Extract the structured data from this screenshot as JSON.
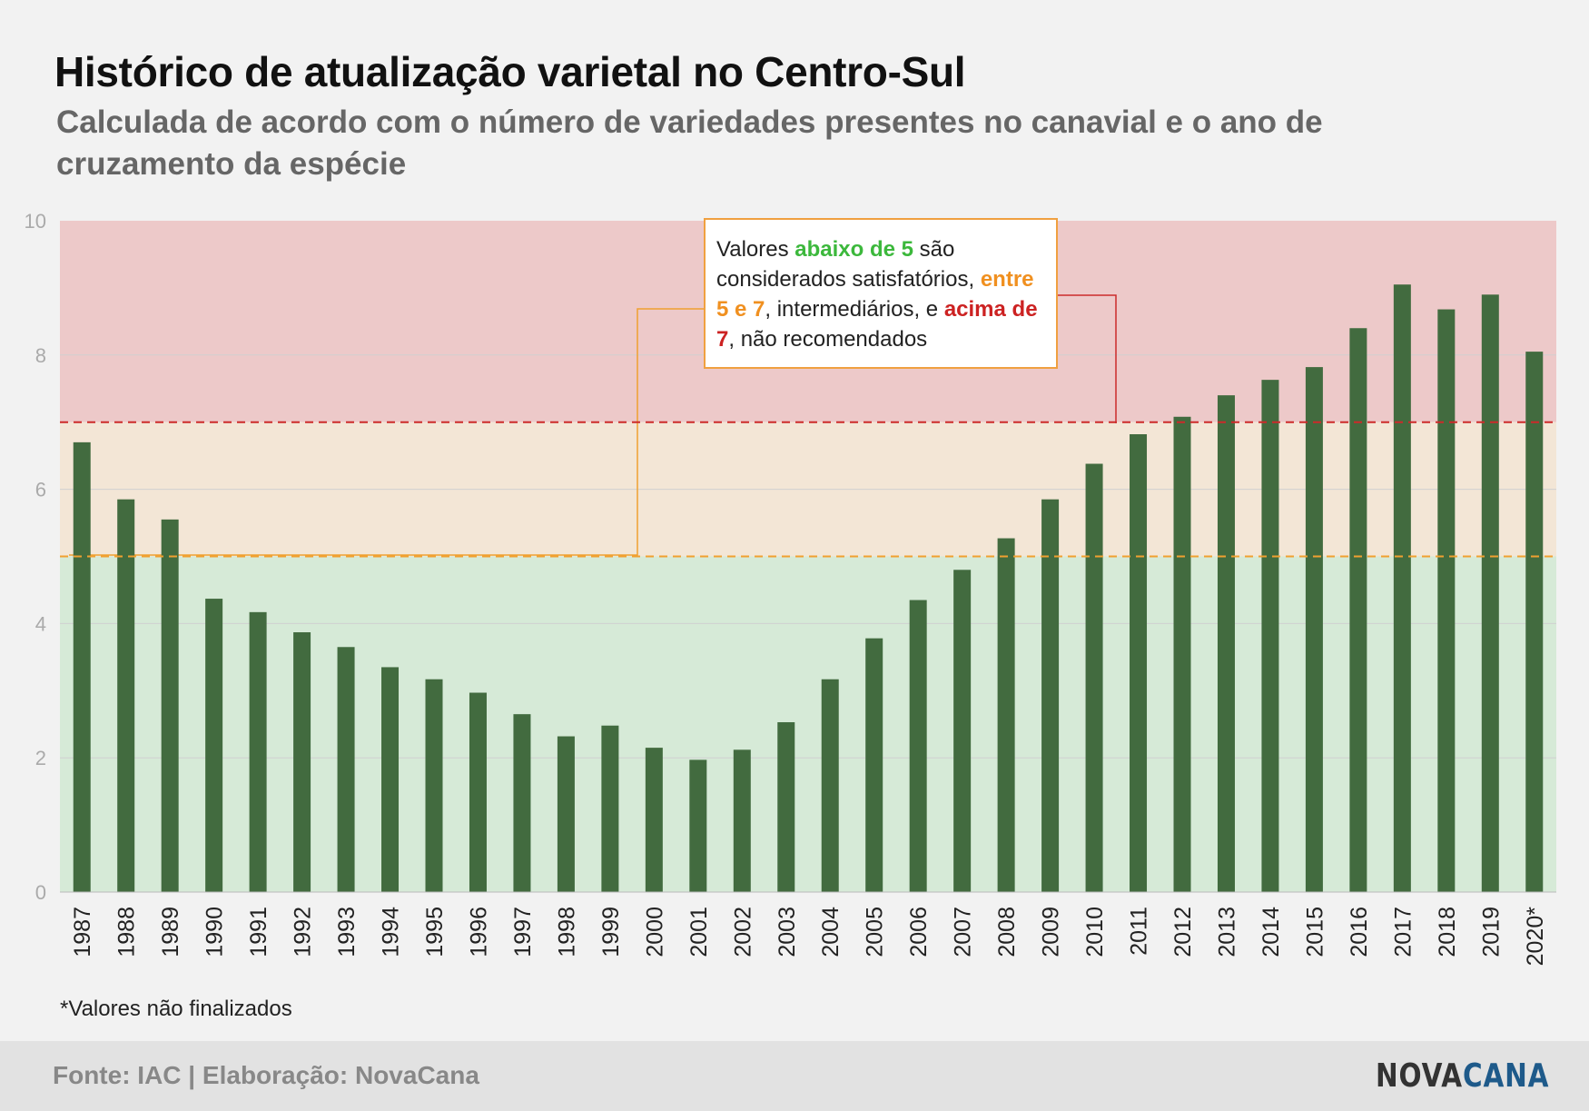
{
  "header": {
    "title": "Histórico de atualização varietal no Centro-Sul",
    "subtitle": "Calculada de acordo com o número de variedades presentes no canavial e o ano de cruzamento da espécie"
  },
  "callout": {
    "t1": "Valores ",
    "h1": "abaixo de 5",
    "t2": " são considerados satisfatórios, ",
    "h2": "entre 5 e 7",
    "t3": ", intermediários, e ",
    "h3": "acima de 7",
    "t4": ", não recomendados"
  },
  "footnote": "*Valores não finalizados",
  "footer": {
    "source": "Fonte: IAC | Elaboração: NovaCana",
    "logo_part1": "NOVA",
    "logo_part2": "CANA"
  },
  "colors": {
    "bar": "#426b3f",
    "zone_green": "#d6ead7",
    "zone_orange": "#f3e6d6",
    "zone_red": "#edc9c9",
    "line_orange": "#f0a030",
    "line_red": "#cc2a2a"
  },
  "chart_data": {
    "type": "bar",
    "categories": [
      "1987",
      "1988",
      "1989",
      "1990",
      "1991",
      "1992",
      "1993",
      "1994",
      "1995",
      "1996",
      "1997",
      "1998",
      "1999",
      "2000",
      "2001",
      "2002",
      "2003",
      "2004",
      "2005",
      "2006",
      "2007",
      "2008",
      "2009",
      "2010",
      "2011",
      "2012",
      "2013",
      "2014",
      "2015",
      "2016",
      "2017",
      "2018",
      "2019",
      "2020*"
    ],
    "values": [
      6.7,
      5.85,
      5.55,
      4.37,
      4.17,
      3.87,
      3.65,
      3.35,
      3.17,
      2.97,
      2.65,
      2.32,
      2.48,
      2.15,
      1.97,
      2.12,
      2.53,
      3.17,
      3.78,
      4.35,
      4.8,
      5.27,
      5.85,
      6.38,
      6.82,
      7.08,
      7.4,
      7.63,
      7.82,
      8.4,
      9.05,
      8.68,
      8.9,
      8.05
    ],
    "ylim": [
      0,
      10
    ],
    "yticks": [
      0,
      2,
      4,
      6,
      8,
      10
    ],
    "thresholds": [
      5,
      7
    ],
    "zones": [
      {
        "from": 0,
        "to": 5,
        "label": "satisfatórios"
      },
      {
        "from": 5,
        "to": 7,
        "label": "intermediários"
      },
      {
        "from": 7,
        "to": 10,
        "label": "não recomendados"
      }
    ],
    "grid": true,
    "legend": "none"
  }
}
